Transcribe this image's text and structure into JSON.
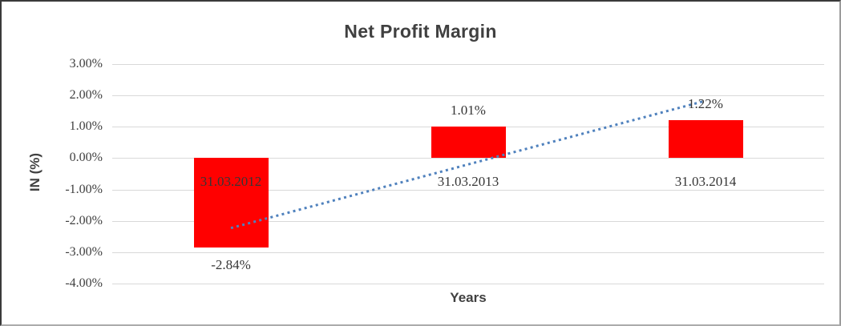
{
  "chart_data": {
    "type": "bar",
    "title": "Net Profit Margin",
    "xlabel": "Years",
    "ylabel": "IN (%)",
    "categories": [
      "31.03.2012",
      "31.03.2013",
      "31.03.2014"
    ],
    "values": [
      -2.84,
      1.01,
      1.22
    ],
    "data_labels": [
      "-2.84%",
      "1.01%",
      "1.22%"
    ],
    "yticks": [
      {
        "label": "3.00%",
        "value": 3
      },
      {
        "label": "2.00%",
        "value": 2
      },
      {
        "label": "1.00%",
        "value": 1
      },
      {
        "label": "0.00%",
        "value": 0
      },
      {
        "label": "-1.00%",
        "value": -1
      },
      {
        "label": "-2.00%",
        "value": -2
      },
      {
        "label": "-3.00%",
        "value": -3
      },
      {
        "label": "-4.00%",
        "value": -4
      }
    ],
    "ylim": [
      -4,
      3
    ],
    "grid": true,
    "legend": false,
    "trendline": {
      "type": "linear",
      "style": "dotted",
      "start_value": -2.23,
      "end_value": 1.83
    },
    "colors": {
      "bar": "#ff0000",
      "trendline": "#4f81bd",
      "gridline": "#d9d9d9",
      "text": "#404040"
    }
  }
}
